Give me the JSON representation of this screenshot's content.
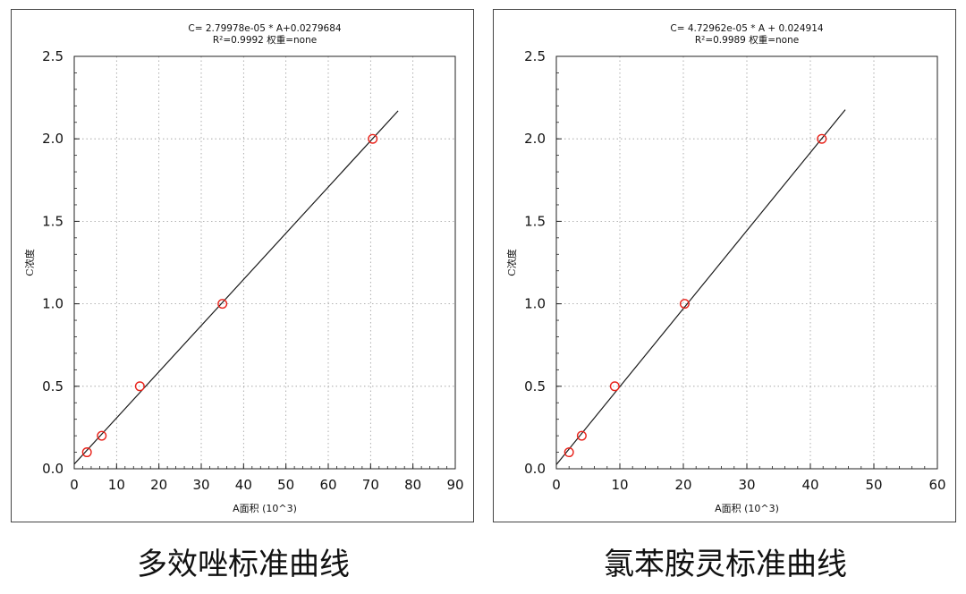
{
  "chart_data": [
    {
      "type": "scatter",
      "equation": "C= 2.79978e-05 * A+0.0279684",
      "stats": "R²=0.9992 权重=none",
      "xlabel": "A面积 (10^3)",
      "ylabel": "C浓度",
      "xlim": [
        0,
        90
      ],
      "ylim": [
        0,
        2.5
      ],
      "xticks": [
        "0",
        "10",
        "20",
        "30",
        "40",
        "50",
        "60",
        "70",
        "80",
        "90"
      ],
      "yticks": [
        "0.0",
        "0.5",
        "1.0",
        "1.5",
        "2.0",
        "2.5"
      ],
      "grid": true,
      "fit_line": {
        "slope": 0.0279978,
        "intercept": 0.0279684,
        "x_range": [
          0,
          76.5
        ]
      },
      "series": [
        {
          "points": [
            {
              "x": 3.0,
              "y": 0.1
            },
            {
              "x": 6.5,
              "y": 0.2
            },
            {
              "x": 15.5,
              "y": 0.5
            },
            {
              "x": 35.0,
              "y": 1.0
            },
            {
              "x": 70.5,
              "y": 2.0
            }
          ]
        }
      ],
      "point_color": "#e8221a",
      "line_color": "#1a1a1a"
    },
    {
      "type": "scatter",
      "equation": "C= 4.72962e-05 * A + 0.024914",
      "stats": "R²=0.9989 权重=none",
      "xlabel": "A面积 (10^3)",
      "ylabel": "C浓度",
      "xlim": [
        0,
        60
      ],
      "ylim": [
        0,
        2.5
      ],
      "xticks": [
        "0",
        "10",
        "20",
        "30",
        "40",
        "50",
        "60"
      ],
      "yticks": [
        "0.0",
        "0.5",
        "1.0",
        "1.5",
        "2.0",
        "2.5"
      ],
      "grid": true,
      "fit_line": {
        "slope": 0.0472962,
        "intercept": 0.024914,
        "x_range": [
          0,
          45.5
        ]
      },
      "series": [
        {
          "points": [
            {
              "x": 2.0,
              "y": 0.1
            },
            {
              "x": 4.0,
              "y": 0.2
            },
            {
              "x": 9.2,
              "y": 0.5
            },
            {
              "x": 20.2,
              "y": 1.0
            },
            {
              "x": 41.8,
              "y": 2.0
            }
          ]
        }
      ],
      "point_color": "#e8221a",
      "line_color": "#1a1a1a"
    }
  ],
  "captions": {
    "left": "多效唑标准曲线",
    "right": "氯苯胺灵标准曲线"
  }
}
